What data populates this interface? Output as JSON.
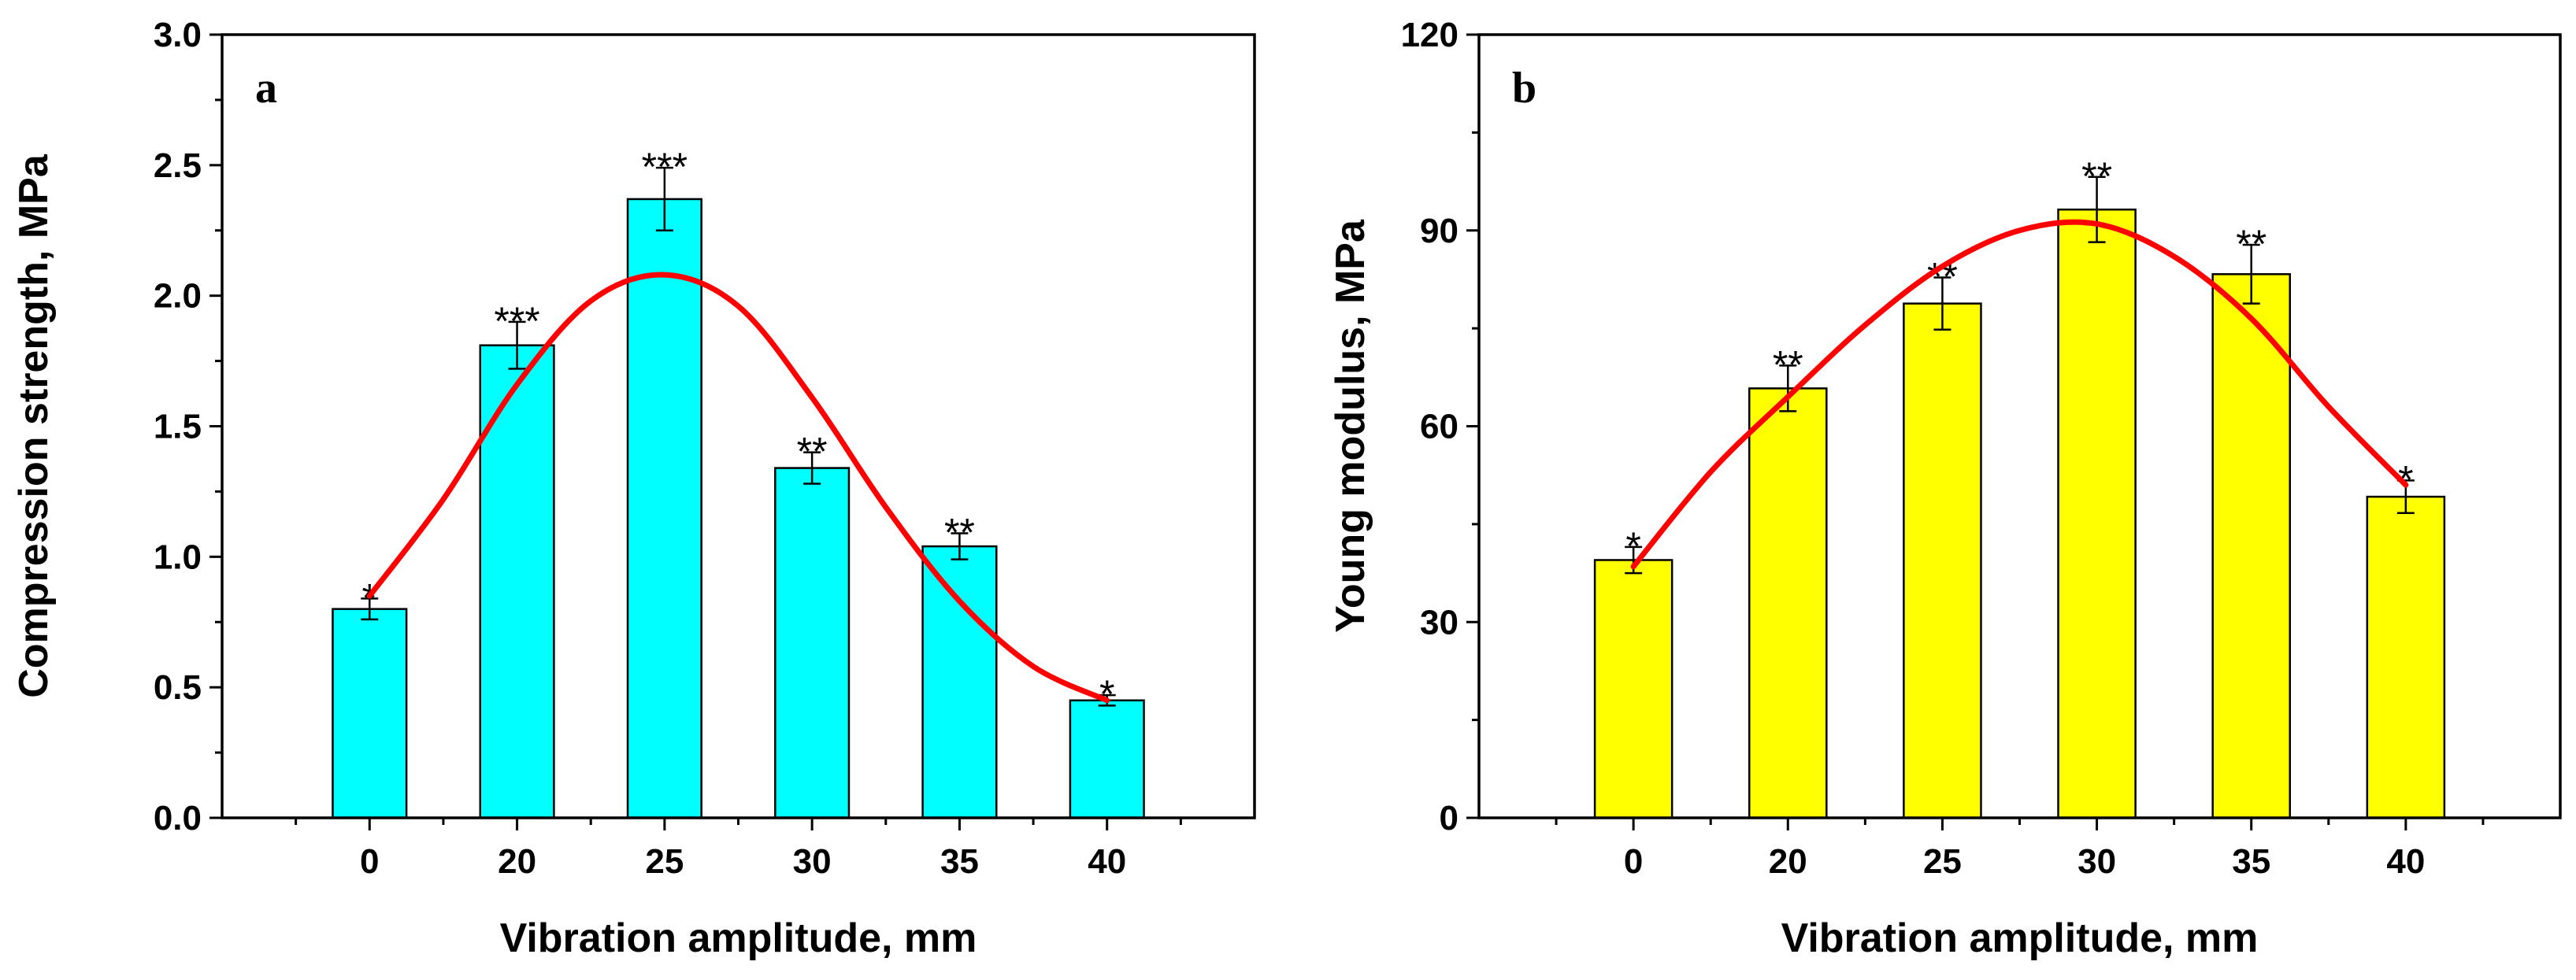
{
  "chart_data": [
    {
      "type": "bar",
      "panel_label": "a",
      "categories": [
        "0",
        "20",
        "25",
        "30",
        "35",
        "40"
      ],
      "values": [
        0.8,
        1.81,
        2.37,
        1.34,
        1.04,
        0.45
      ],
      "errors": [
        0.04,
        0.09,
        0.12,
        0.06,
        0.05,
        0.02
      ],
      "significance": [
        "*",
        "***",
        "***",
        "**",
        "**",
        "*"
      ],
      "trend_curve": {
        "x": [
          0,
          0.5,
          1,
          1.5,
          2,
          2.5,
          3,
          3.5,
          4,
          4.5,
          5
        ],
        "y": [
          0.85,
          1.22,
          1.66,
          1.98,
          2.08,
          1.96,
          1.61,
          1.19,
          0.83,
          0.58,
          0.45
        ]
      },
      "xlabel": "Vibration amplitude, mm",
      "ylabel": "Compression strength, MPa",
      "ylim": [
        0,
        3.0
      ],
      "yticks": [
        "0.0",
        "0.5",
        "1.0",
        "1.5",
        "2.0",
        "2.5",
        "3.0"
      ],
      "colors": {
        "bar": "#00ffff",
        "curve": "#ff0000",
        "error": "#000000"
      }
    },
    {
      "type": "bar",
      "panel_label": "b",
      "categories": [
        "0",
        "20",
        "25",
        "30",
        "35",
        "40"
      ],
      "values": [
        39.5,
        65.8,
        78.8,
        93.2,
        83.3,
        49.2
      ],
      "errors": [
        2.0,
        3.5,
        4.0,
        5.0,
        4.5,
        2.5
      ],
      "significance": [
        "*",
        "**",
        "**",
        "**",
        "**",
        "*"
      ],
      "trend_curve": {
        "x": [
          0,
          0.5,
          1,
          1.5,
          2,
          2.5,
          3,
          3.5,
          4,
          4.5,
          5
        ],
        "y": [
          38.5,
          53,
          64.5,
          75.5,
          84.5,
          90,
          91,
          86,
          76.5,
          63,
          51
        ]
      },
      "xlabel": "Vibration amplitude, mm",
      "ylabel": "Young modulus, MPa",
      "ylim": [
        0,
        120
      ],
      "yticks": [
        "0",
        "30",
        "60",
        "90",
        "120"
      ],
      "colors": {
        "bar": "#ffff00",
        "curve": "#ff0000",
        "error": "#000000"
      }
    }
  ]
}
